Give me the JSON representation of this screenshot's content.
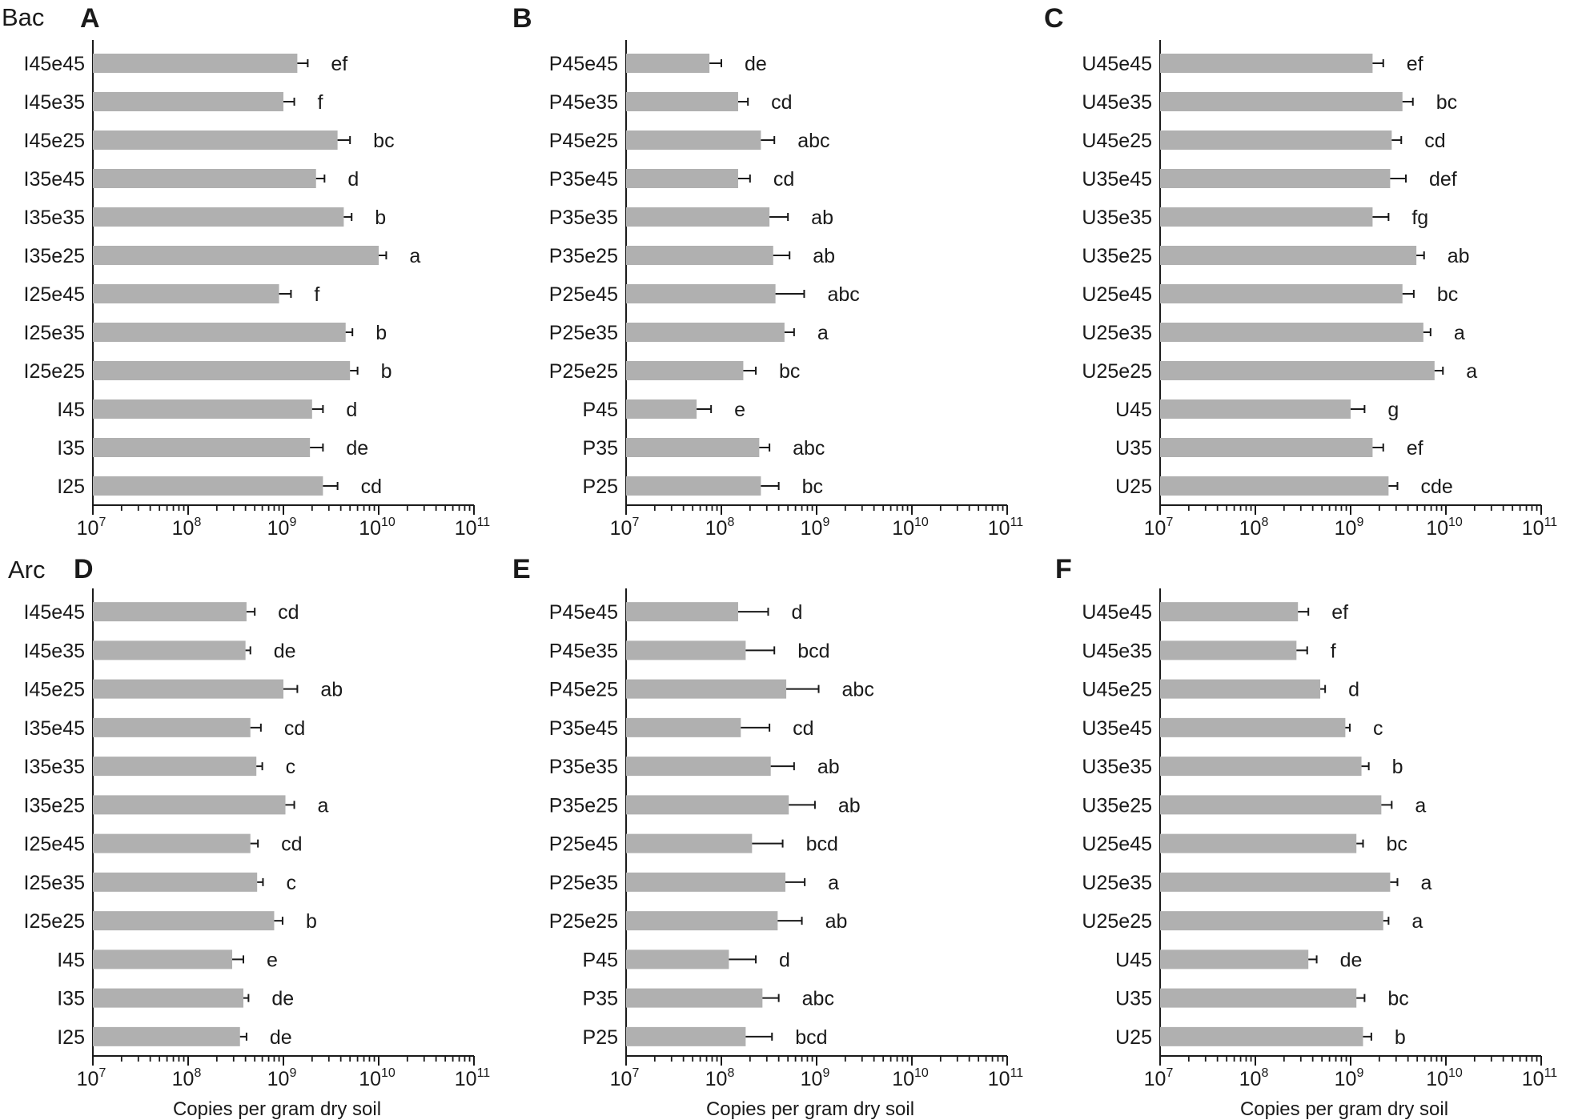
{
  "figure": {
    "row_labels": [
      "Bac",
      "Arc"
    ],
    "x_axis_title": "Copies per gram dry soil"
  },
  "chart_data": [
    {
      "panel": "A",
      "type": "bar",
      "orientation": "horizontal",
      "xscale": "log",
      "xlim": [
        10000000,
        100000000000
      ],
      "xticks": [
        {
          "base": "10",
          "exp": "7"
        },
        {
          "base": "10",
          "exp": "8"
        },
        {
          "base": "10",
          "exp": "9"
        },
        {
          "base": "10",
          "exp": "10"
        },
        {
          "base": "10",
          "exp": "11"
        }
      ],
      "xlabel": "",
      "categories": [
        "I45e45",
        "I45e35",
        "I45e25",
        "I35e45",
        "I35e35",
        "I35e25",
        "I25e45",
        "I25e35",
        "I25e25",
        "I45",
        "I35",
        "I25"
      ],
      "values": [
        1400000000.0,
        1000000000.0,
        3700000000.0,
        2200000000.0,
        4300000000.0,
        10000000000.0,
        900000000.0,
        4500000000.0,
        5000000000.0,
        2000000000.0,
        1900000000.0,
        2600000000.0
      ],
      "error_upper": [
        1800000000.0,
        1300000000.0,
        5000000000.0,
        2700000000.0,
        5200000000.0,
        12000000000.0,
        1200000000.0,
        5300000000.0,
        6000000000.0,
        2600000000.0,
        2600000000.0,
        3700000000.0
      ],
      "significance": [
        "ef",
        "f",
        "bc",
        "d",
        "b",
        "a",
        "f",
        "b",
        "b",
        "d",
        "de",
        "cd"
      ]
    },
    {
      "panel": "B",
      "type": "bar",
      "orientation": "horizontal",
      "xscale": "log",
      "xlim": [
        10000000,
        100000000000
      ],
      "xticks": [
        {
          "base": "10",
          "exp": "7"
        },
        {
          "base": "10",
          "exp": "8"
        },
        {
          "base": "10",
          "exp": "9"
        },
        {
          "base": "10",
          "exp": "10"
        },
        {
          "base": "10",
          "exp": "11"
        }
      ],
      "xlabel": "",
      "categories": [
        "P45e45",
        "P45e35",
        "P45e25",
        "P35e45",
        "P35e35",
        "P35e25",
        "P25e45",
        "P25e35",
        "P25e25",
        "P45",
        "P35",
        "P25"
      ],
      "values": [
        75000000.0,
        150000000.0,
        260000000.0,
        150000000.0,
        320000000.0,
        350000000.0,
        370000000.0,
        460000000.0,
        170000000.0,
        55000000.0,
        250000000.0,
        260000000.0
      ],
      "error_upper": [
        100000000.0,
        190000000.0,
        360000000.0,
        200000000.0,
        500000000.0,
        520000000.0,
        740000000.0,
        580000000.0,
        230000000.0,
        78000000.0,
        320000000.0,
        400000000.0
      ],
      "significance": [
        "de",
        "cd",
        "abc",
        "cd",
        "ab",
        "ab",
        "abc",
        "a",
        "bc",
        "e",
        "abc",
        "bc"
      ]
    },
    {
      "panel": "C",
      "type": "bar",
      "orientation": "horizontal",
      "xscale": "log",
      "xlim": [
        10000000,
        100000000000
      ],
      "xticks": [
        {
          "base": "10",
          "exp": "7"
        },
        {
          "base": "10",
          "exp": "8"
        },
        {
          "base": "10",
          "exp": "9"
        },
        {
          "base": "10",
          "exp": "10"
        },
        {
          "base": "10",
          "exp": "11"
        }
      ],
      "xlabel": "",
      "categories": [
        "U45e45",
        "U45e35",
        "U45e25",
        "U35e45",
        "U35e35",
        "U35e25",
        "U25e45",
        "U25e35",
        "U25e25",
        "U45",
        "U35",
        "U25"
      ],
      "values": [
        1700000000.0,
        3500000000.0,
        2700000000.0,
        2600000000.0,
        1700000000.0,
        4900000000.0,
        3500000000.0,
        5800000000.0,
        7600000000.0,
        1000000000.0,
        1700000000.0,
        2500000000.0
      ],
      "error_upper": [
        2200000000.0,
        4500000000.0,
        3400000000.0,
        3800000000.0,
        2500000000.0,
        5900000000.0,
        4600000000.0,
        6900000000.0,
        9300000000.0,
        1400000000.0,
        2200000000.0,
        3100000000.0
      ],
      "significance": [
        "ef",
        "bc",
        "cd",
        "def",
        "fg",
        "ab",
        "bc",
        "a",
        "a",
        "g",
        "ef",
        "cde"
      ]
    },
    {
      "panel": "D",
      "type": "bar",
      "orientation": "horizontal",
      "xscale": "log",
      "xlim": [
        10000000,
        100000000000
      ],
      "xticks": [
        {
          "base": "10",
          "exp": "7"
        },
        {
          "base": "10",
          "exp": "8"
        },
        {
          "base": "10",
          "exp": "9"
        },
        {
          "base": "10",
          "exp": "10"
        },
        {
          "base": "10",
          "exp": "11"
        }
      ],
      "xlabel": "Copies per gram dry soil",
      "categories": [
        "I45e45",
        "I45e35",
        "I45e25",
        "I35e45",
        "I35e35",
        "I35e25",
        "I25e45",
        "I25e35",
        "I25e25",
        "I45",
        "I35",
        "I25"
      ],
      "values": [
        410000000.0,
        400000000.0,
        1000000000.0,
        450000000.0,
        520000000.0,
        1050000000.0,
        450000000.0,
        530000000.0,
        800000000.0,
        290000000.0,
        380000000.0,
        350000000.0
      ],
      "error_upper": [
        500000000.0,
        450000000.0,
        1400000000.0,
        580000000.0,
        600000000.0,
        1300000000.0,
        540000000.0,
        610000000.0,
        980000000.0,
        380000000.0,
        430000000.0,
        410000000.0
      ],
      "significance": [
        "cd",
        "de",
        "ab",
        "cd",
        "c",
        "a",
        "cd",
        "c",
        "b",
        "e",
        "de",
        "de"
      ]
    },
    {
      "panel": "E",
      "type": "bar",
      "orientation": "horizontal",
      "xscale": "log",
      "xlim": [
        10000000,
        100000000000
      ],
      "xticks": [
        {
          "base": "10",
          "exp": "7"
        },
        {
          "base": "10",
          "exp": "8"
        },
        {
          "base": "10",
          "exp": "9"
        },
        {
          "base": "10",
          "exp": "10"
        },
        {
          "base": "10",
          "exp": "11"
        }
      ],
      "xlabel": "Copies per gram dry soil",
      "categories": [
        "P45e45",
        "P45e35",
        "P45e25",
        "P35e45",
        "P35e35",
        "P35e25",
        "P25e45",
        "P25e35",
        "P25e25",
        "P45",
        "P35",
        "P25"
      ],
      "values": [
        150000000.0,
        180000000.0,
        480000000.0,
        160000000.0,
        330000000.0,
        510000000.0,
        210000000.0,
        470000000.0,
        390000000.0,
        120000000.0,
        270000000.0,
        180000000.0
      ],
      "error_upper": [
        310000000.0,
        360000000.0,
        1050000000.0,
        320000000.0,
        580000000.0,
        960000000.0,
        440000000.0,
        750000000.0,
        700000000.0,
        230000000.0,
        400000000.0,
        340000000.0
      ],
      "significance": [
        "d",
        "bcd",
        "abc",
        "cd",
        "ab",
        "ab",
        "bcd",
        "a",
        "ab",
        "d",
        "abc",
        "bcd"
      ]
    },
    {
      "panel": "F",
      "type": "bar",
      "orientation": "horizontal",
      "xscale": "log",
      "xlim": [
        10000000,
        100000000000
      ],
      "xticks": [
        {
          "base": "10",
          "exp": "7"
        },
        {
          "base": "10",
          "exp": "8"
        },
        {
          "base": "10",
          "exp": "9"
        },
        {
          "base": "10",
          "exp": "10"
        },
        {
          "base": "10",
          "exp": "11"
        }
      ],
      "xlabel": "Copies per gram dry soil",
      "categories": [
        "U45e45",
        "U45e35",
        "U45e25",
        "U35e45",
        "U35e35",
        "U35e25",
        "U25e45",
        "U25e35",
        "U25e25",
        "U45",
        "U35",
        "U25"
      ],
      "values": [
        280000000.0,
        270000000.0,
        480000000.0,
        880000000.0,
        1300000000.0,
        2100000000.0,
        1150000000.0,
        2600000000.0,
        2200000000.0,
        360000000.0,
        1150000000.0,
        1350000000.0
      ],
      "error_upper": [
        360000000.0,
        350000000.0,
        540000000.0,
        980000000.0,
        1550000000.0,
        2700000000.0,
        1350000000.0,
        3100000000.0,
        2500000000.0,
        440000000.0,
        1400000000.0,
        1650000000.0
      ],
      "significance": [
        "ef",
        "f",
        "d",
        "c",
        "b",
        "a",
        "bc",
        "a",
        "a",
        "de",
        "bc",
        "b"
      ]
    }
  ]
}
